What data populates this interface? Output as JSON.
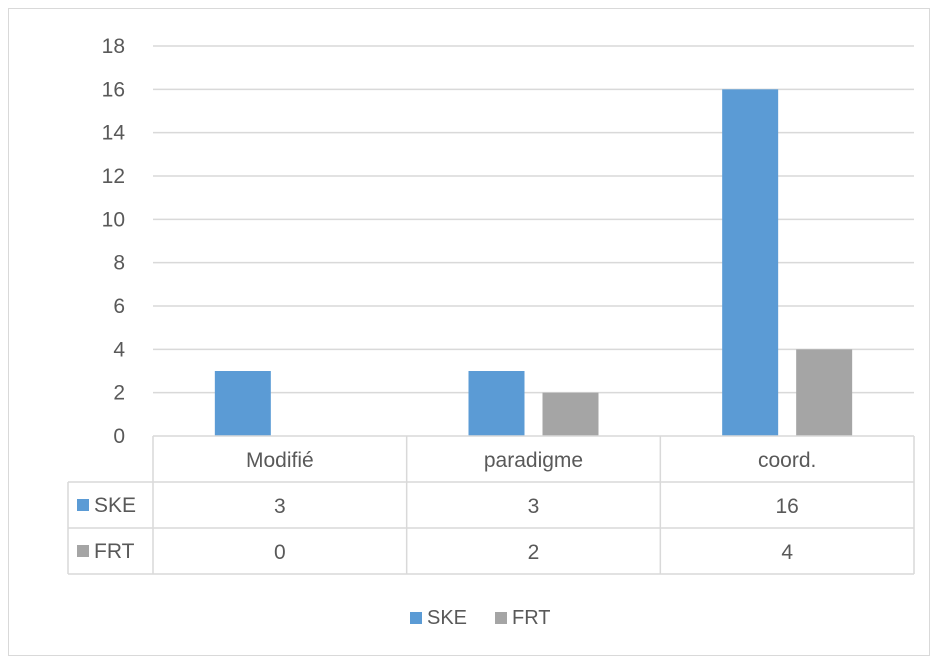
{
  "chart_data": {
    "type": "bar",
    "categories": [
      "Modifié",
      "paradigme",
      "coord."
    ],
    "series": [
      {
        "name": "SKE",
        "values": [
          3,
          3,
          16
        ],
        "color": "#5b9bd5"
      },
      {
        "name": "FRT",
        "values": [
          0,
          2,
          4
        ],
        "color": "#a5a5a5"
      }
    ],
    "ylim": [
      0,
      18
    ],
    "yticks": [
      0,
      2,
      4,
      6,
      8,
      10,
      12,
      14,
      16,
      18
    ],
    "table_values": [
      [
        "3",
        "3",
        "16"
      ],
      [
        "0",
        "2",
        "4"
      ]
    ],
    "grid": true,
    "legend": "bottom",
    "data_table": true
  }
}
